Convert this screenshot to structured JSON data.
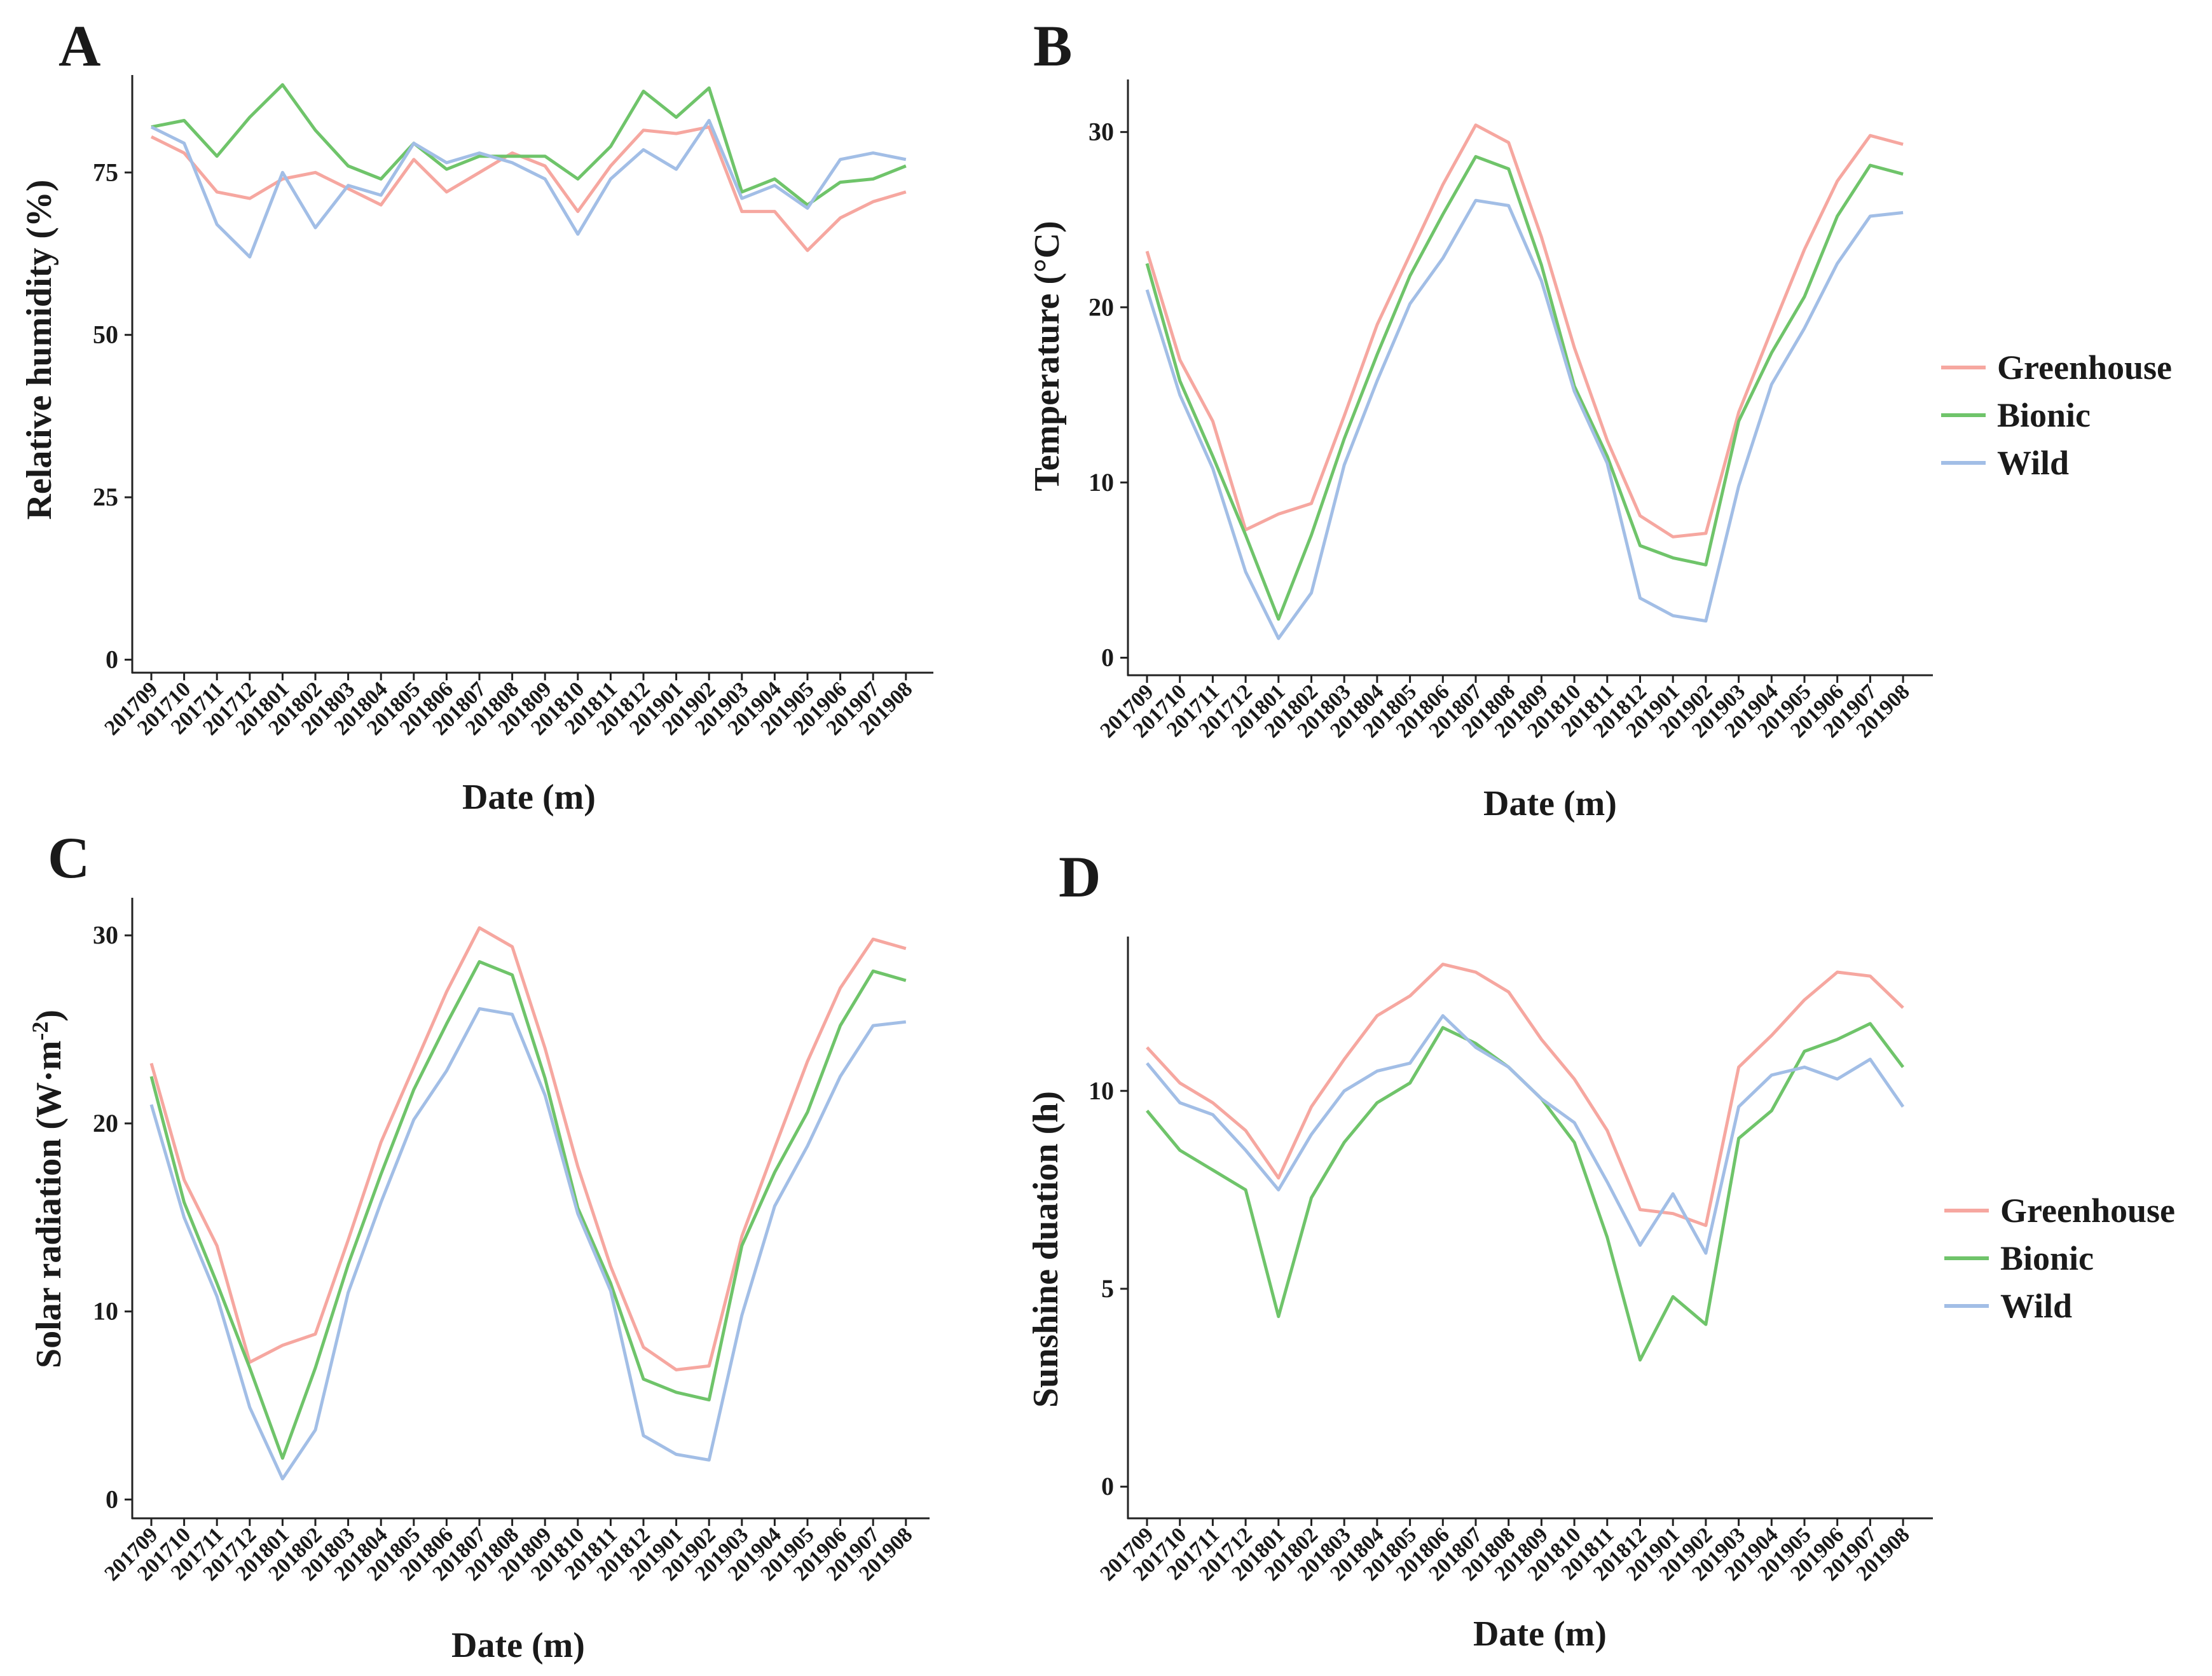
{
  "colors": {
    "greenhouse": "#f6a7a0",
    "bionic": "#6fc46a",
    "wild": "#a2bee6",
    "axis": "#222222"
  },
  "chart_data": [
    {
      "type": "line",
      "panel": "A",
      "title": "",
      "xlabel": "Date (m)",
      "ylabel": "Relative humidity (%)",
      "ylim": [
        -2,
        90
      ],
      "yticks": [
        "0",
        "25",
        "50",
        "75"
      ],
      "yticks_values": [
        0,
        25,
        50,
        75
      ],
      "categories": [
        "201709",
        "201710",
        "201711",
        "201712",
        "201801",
        "201802",
        "201803",
        "201804",
        "201805",
        "201806",
        "201807",
        "201808",
        "201809",
        "201810",
        "201811",
        "201812",
        "201901",
        "201902",
        "201903",
        "201904",
        "201905",
        "201906",
        "201907",
        "201908"
      ],
      "legend": [],
      "series": [
        {
          "name": "Greenhouse",
          "key": "greenhouse",
          "values": [
            80.5,
            78,
            72,
            71,
            74,
            75,
            72.5,
            70,
            77,
            72,
            75,
            78,
            76,
            69,
            76,
            81.5,
            81,
            82,
            69,
            69,
            63,
            68,
            70.5,
            72
          ]
        },
        {
          "name": "Bionic",
          "key": "bionic",
          "values": [
            82,
            83,
            77.5,
            83.5,
            88.5,
            81.5,
            76,
            74,
            79.5,
            75.5,
            77.5,
            77.5,
            77.5,
            74,
            79,
            87.5,
            83.5,
            88,
            72,
            74,
            70,
            73.5,
            74,
            76
          ]
        },
        {
          "name": "Wild",
          "key": "wild",
          "values": [
            82,
            79.5,
            67,
            62,
            75,
            66.5,
            73,
            71.5,
            79.5,
            76.5,
            78,
            76.5,
            74,
            65.5,
            74,
            78.5,
            75.5,
            83,
            71,
            73,
            69.5,
            77,
            78,
            77
          ]
        }
      ]
    },
    {
      "type": "line",
      "panel": "B",
      "title": "",
      "xlabel": "Date (m)",
      "ylabel": "Temperature (°C)",
      "ylim": [
        -1,
        33
      ],
      "yticks": [
        "0",
        "10",
        "20",
        "30"
      ],
      "yticks_values": [
        0,
        10,
        20,
        30
      ],
      "categories": [
        "201709",
        "201710",
        "201711",
        "201712",
        "201801",
        "201802",
        "201803",
        "201804",
        "201805",
        "201806",
        "201807",
        "201808",
        "201809",
        "201810",
        "201811",
        "201812",
        "201901",
        "201902",
        "201903",
        "201904",
        "201905",
        "201906",
        "201907",
        "201908"
      ],
      "legend": [
        "Greenhouse",
        "Bionic",
        "Wild"
      ],
      "series": [
        {
          "name": "Greenhouse",
          "key": "greenhouse",
          "values": [
            23.2,
            17,
            13.5,
            7.3,
            8.2,
            8.8,
            13.8,
            19,
            23,
            27,
            30.4,
            29.4,
            24,
            17.7,
            12.4,
            8.1,
            6.9,
            7.1,
            14,
            18.7,
            23.3,
            27.2,
            29.8,
            29.3
          ]
        },
        {
          "name": "Bionic",
          "key": "bionic",
          "values": [
            22.5,
            15.8,
            11.5,
            7,
            2.2,
            7,
            12.5,
            17.3,
            21.8,
            25.3,
            28.6,
            27.9,
            22.4,
            15.5,
            11.5,
            6.4,
            5.7,
            5.3,
            13.5,
            17.4,
            20.6,
            25.2,
            28.1,
            27.6
          ]
        },
        {
          "name": "Wild",
          "key": "wild",
          "values": [
            21,
            15,
            10.8,
            4.9,
            1.1,
            3.7,
            11,
            15.8,
            20.2,
            22.8,
            26.1,
            25.8,
            21.5,
            15.2,
            11.1,
            3.4,
            2.4,
            2.1,
            9.8,
            15.6,
            18.8,
            22.5,
            25.2,
            25.4
          ]
        }
      ]
    },
    {
      "type": "line",
      "panel": "C",
      "title": "",
      "xlabel": "Date (m)",
      "ylabel": "Solar radiation (W·m",
      "ylabel_sup": "-2",
      "ylabel_end": ")",
      "ylim": [
        -1,
        32
      ],
      "yticks": [
        "0",
        "10",
        "20",
        "30"
      ],
      "yticks_values": [
        0,
        10,
        20,
        30
      ],
      "categories": [
        "201709",
        "201710",
        "201711",
        "201712",
        "201801",
        "201802",
        "201803",
        "201804",
        "201805",
        "201806",
        "201807",
        "201808",
        "201809",
        "201810",
        "201811",
        "201812",
        "201901",
        "201902",
        "201903",
        "201904",
        "201905",
        "201906",
        "201907",
        "201908"
      ],
      "legend": [],
      "series": [
        {
          "name": "Greenhouse",
          "key": "greenhouse",
          "values": [
            23.2,
            17,
            13.5,
            7.3,
            8.2,
            8.8,
            13.8,
            19,
            23,
            27,
            30.4,
            29.4,
            24,
            17.7,
            12.4,
            8.1,
            6.9,
            7.1,
            14,
            18.7,
            23.3,
            27.2,
            29.8,
            29.3
          ]
        },
        {
          "name": "Bionic",
          "key": "bionic",
          "values": [
            22.5,
            15.8,
            11.5,
            7,
            2.2,
            7,
            12.5,
            17.3,
            21.8,
            25.3,
            28.6,
            27.9,
            22.4,
            15.5,
            11.5,
            6.4,
            5.7,
            5.3,
            13.5,
            17.4,
            20.6,
            25.2,
            28.1,
            27.6
          ]
        },
        {
          "name": "Wild",
          "key": "wild",
          "values": [
            21,
            15,
            10.8,
            4.9,
            1.1,
            3.7,
            11,
            15.8,
            20.2,
            22.8,
            26.1,
            25.8,
            21.5,
            15.2,
            11.1,
            3.4,
            2.4,
            2.1,
            9.8,
            15.6,
            18.8,
            22.5,
            25.2,
            25.4
          ]
        }
      ]
    },
    {
      "type": "line",
      "panel": "D",
      "title": "",
      "xlabel": "Date (m)",
      "ylabel": "Sunshine duation (h)",
      "ylim": [
        -0.8,
        13.9
      ],
      "yticks": [
        "0",
        "5",
        "10"
      ],
      "yticks_values": [
        0,
        5,
        10
      ],
      "categories": [
        "201709",
        "201710",
        "201711",
        "201712",
        "201801",
        "201802",
        "201803",
        "201804",
        "201805",
        "201806",
        "201807",
        "201808",
        "201809",
        "201810",
        "201811",
        "201812",
        "201901",
        "201902",
        "201903",
        "201904",
        "201905",
        "201906",
        "201907",
        "201908"
      ],
      "legend": [
        "Greenhouse",
        "Bionic",
        "Wild"
      ],
      "series": [
        {
          "name": "Greenhouse",
          "key": "greenhouse",
          "values": [
            11.1,
            10.2,
            9.7,
            9,
            7.8,
            9.6,
            10.8,
            11.9,
            12.4,
            13.2,
            13,
            12.5,
            11.3,
            10.3,
            9,
            7,
            6.9,
            6.6,
            10.6,
            11.4,
            12.3,
            13,
            12.9,
            12.1
          ]
        },
        {
          "name": "Bionic",
          "key": "bionic",
          "values": [
            9.5,
            8.5,
            8,
            7.5,
            4.3,
            7.3,
            8.7,
            9.7,
            10.2,
            11.6,
            11.2,
            10.6,
            9.8,
            8.7,
            6.3,
            3.2,
            4.8,
            4.1,
            8.8,
            9.5,
            11,
            11.3,
            11.7,
            10.6
          ]
        },
        {
          "name": "Wild",
          "key": "wild",
          "values": [
            10.7,
            9.7,
            9.4,
            8.5,
            7.5,
            8.9,
            10,
            10.5,
            10.7,
            11.9,
            11.1,
            10.6,
            9.8,
            9.2,
            7.7,
            6.1,
            7.4,
            5.9,
            9.6,
            10.4,
            10.6,
            10.3,
            10.8,
            9.6
          ]
        }
      ]
    }
  ]
}
